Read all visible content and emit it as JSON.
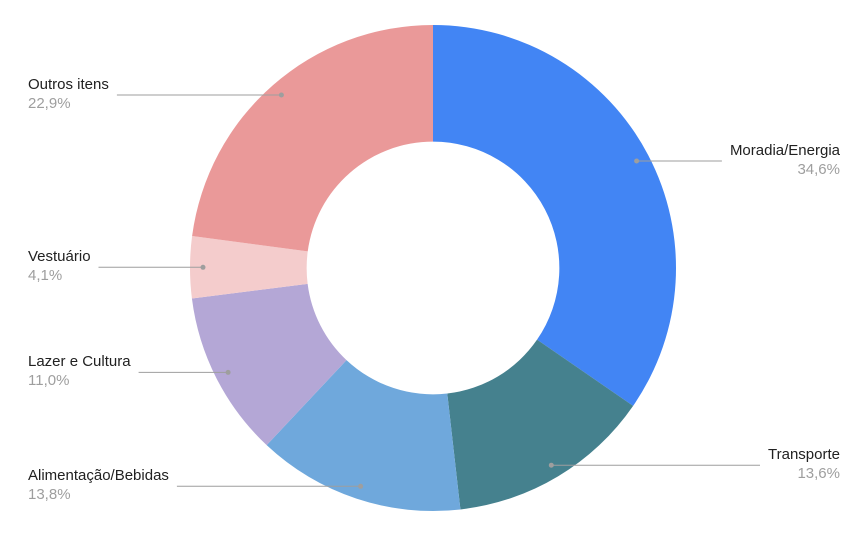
{
  "chart_data": {
    "type": "pie",
    "variant": "donut",
    "title": "",
    "legend_position": "labeled",
    "background": "#ffffff",
    "inner_radius_ratio": 0.52,
    "start_angle_deg": 0,
    "direction": "clockwise",
    "label_name_color": "#212121",
    "label_pct_color": "#9e9e9e",
    "leader_line_color": "#9e9e9e",
    "slices": [
      {
        "label": "Moradia/Energia",
        "value": 34.6,
        "pct_label": "34,6%",
        "color": "#4285f4"
      },
      {
        "label": "Transporte",
        "value": 13.6,
        "pct_label": "13,6%",
        "color": "#45818e"
      },
      {
        "label": "Alimentação/Bebidas",
        "value": 13.8,
        "pct_label": "13,8%",
        "color": "#6fa8dc"
      },
      {
        "label": "Lazer e Cultura",
        "value": 11.0,
        "pct_label": "11,0%",
        "color": "#b4a7d6"
      },
      {
        "label": "Vestuário",
        "value": 4.1,
        "pct_label": "4,1%",
        "color": "#f4cccc"
      },
      {
        "label": "Outros itens",
        "value": 22.9,
        "pct_label": "22,9%",
        "color": "#ea9999"
      }
    ]
  }
}
